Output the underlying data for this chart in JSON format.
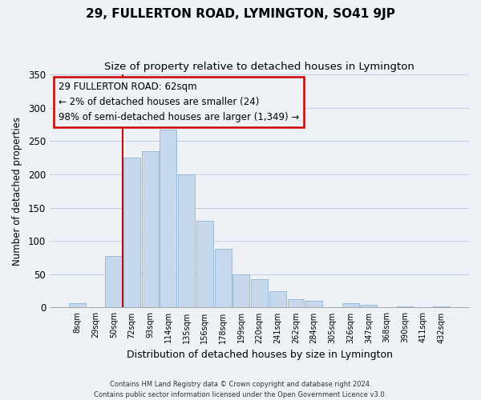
{
  "title": "29, FULLERTON ROAD, LYMINGTON, SO41 9JP",
  "subtitle": "Size of property relative to detached houses in Lymington",
  "xlabel": "Distribution of detached houses by size in Lymington",
  "ylabel": "Number of detached properties",
  "bar_labels": [
    "8sqm",
    "29sqm",
    "50sqm",
    "72sqm",
    "93sqm",
    "114sqm",
    "135sqm",
    "156sqm",
    "178sqm",
    "199sqm",
    "220sqm",
    "241sqm",
    "262sqm",
    "284sqm",
    "305sqm",
    "326sqm",
    "347sqm",
    "368sqm",
    "390sqm",
    "411sqm",
    "432sqm"
  ],
  "bar_values": [
    6,
    0,
    77,
    225,
    235,
    267,
    200,
    130,
    88,
    50,
    43,
    25,
    12,
    10,
    0,
    7,
    4,
    0,
    2,
    0,
    2
  ],
  "bar_color": "#c6d9ec",
  "bar_edge_color": "#8eb4d4",
  "grid_color": "#c0cfe0",
  "vline_color": "#cc0000",
  "vline_x": 2.5,
  "annotation_text": "29 FULLERTON ROAD: 62sqm\n← 2% of detached houses are smaller (24)\n98% of semi-detached houses are larger (1,349) →",
  "annotation_box_edgecolor": "#cc0000",
  "ylim": [
    0,
    350
  ],
  "yticks": [
    0,
    50,
    100,
    150,
    200,
    250,
    300,
    350
  ],
  "footer_line1": "Contains HM Land Registry data © Crown copyright and database right 2024.",
  "footer_line2": "Contains public sector information licensed under the Open Government Licence v3.0.",
  "bg_color": "#eef2f7"
}
